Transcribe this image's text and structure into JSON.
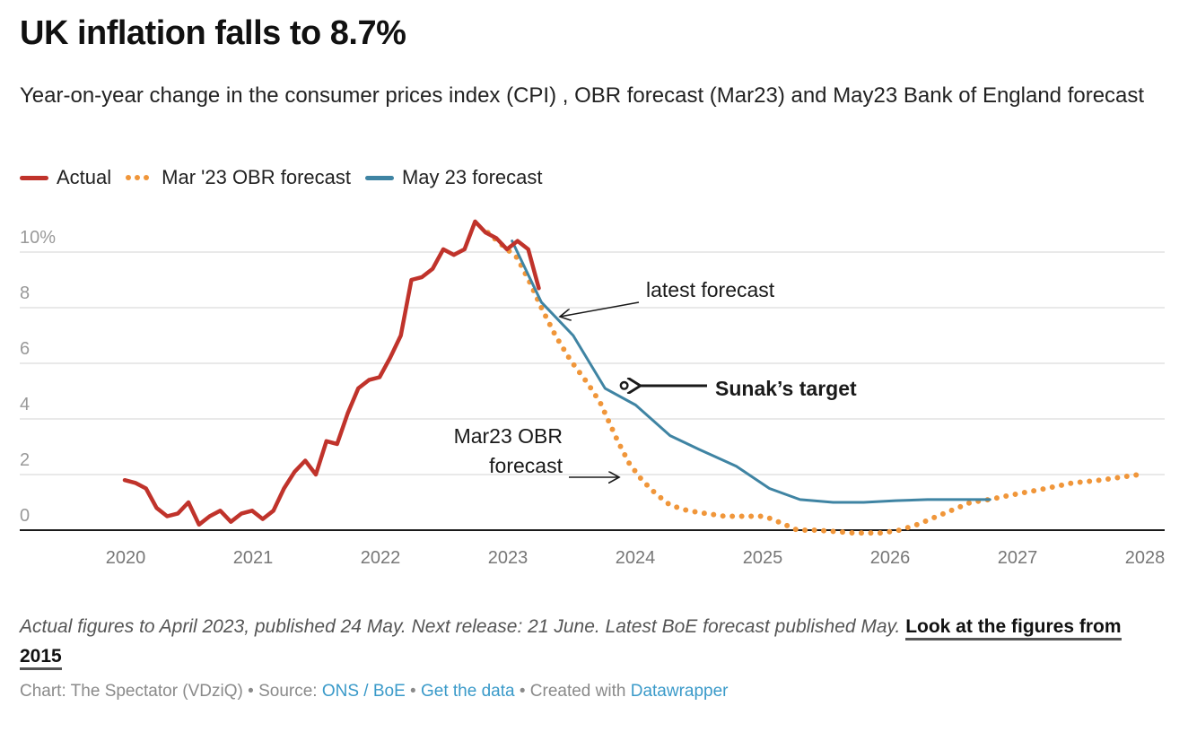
{
  "header": {
    "title": "UK inflation falls to 8.7%",
    "subtitle": "Year-on-year change in the consumer prices index (CPI) , OBR forecast (Mar23) and May23 Bank of England forecast"
  },
  "legend": [
    {
      "label": "Actual",
      "color": "#c0332b",
      "style": "solid"
    },
    {
      "label": "Mar '23 OBR forecast",
      "color": "#f0963a",
      "style": "dotted"
    },
    {
      "label": "May 23 forecast",
      "color": "#3f84a3",
      "style": "solid"
    }
  ],
  "chart_data": {
    "type": "line",
    "title": "UK inflation falls to 8.7%",
    "xlabel": "",
    "ylabel": "",
    "xlim": [
      2019.95,
      2028.1
    ],
    "ylim": [
      0,
      11.5
    ],
    "y_ticks": [
      {
        "value": 10,
        "label": "10%"
      },
      {
        "value": 8,
        "label": "8"
      },
      {
        "value": 6,
        "label": "6"
      },
      {
        "value": 4,
        "label": "4"
      },
      {
        "value": 2,
        "label": "2"
      },
      {
        "value": 0,
        "label": "0"
      }
    ],
    "x_ticks": [
      {
        "value": 2020,
        "label": "2020"
      },
      {
        "value": 2021,
        "label": "2021"
      },
      {
        "value": 2022,
        "label": "2022"
      },
      {
        "value": 2023,
        "label": "2023"
      },
      {
        "value": 2024,
        "label": "2024"
      },
      {
        "value": 2025,
        "label": "2025"
      },
      {
        "value": 2026,
        "label": "2026"
      },
      {
        "value": 2027,
        "label": "2027"
      },
      {
        "value": 2028,
        "label": "2028"
      }
    ],
    "grid": true,
    "legend_position": "top-left",
    "series": [
      {
        "name": "Mar '23 OBR forecast",
        "color": "#f0963a",
        "style": "dotted",
        "x": [
          2022.85,
          2023.0,
          2023.08,
          2023.18,
          2023.27,
          2023.38,
          2023.5,
          2023.63,
          2023.73,
          2023.8,
          2023.87,
          2023.96,
          2024.06,
          2024.17,
          2024.28,
          2024.42,
          2024.56,
          2024.71,
          2024.85,
          2025.01,
          2025.08,
          2025.15,
          2025.28,
          2025.43,
          2025.57,
          2025.72,
          2025.8,
          2025.94,
          2026.08,
          2026.22,
          2026.43,
          2026.64,
          2026.78,
          2027.0,
          2027.23,
          2027.44,
          2027.66,
          2027.96
        ],
        "values": [
          10.7,
          10.1,
          9.8,
          8.9,
          8.0,
          7.0,
          6.1,
          5.3,
          4.6,
          3.9,
          3.2,
          2.4,
          1.8,
          1.3,
          0.9,
          0.7,
          0.6,
          0.5,
          0.5,
          0.5,
          0.4,
          0.26,
          0.0,
          0.0,
          -0.05,
          -0.1,
          -0.1,
          -0.1,
          0.0,
          0.2,
          0.6,
          1.0,
          1.1,
          1.3,
          1.5,
          1.7,
          1.8,
          2.0
        ]
      },
      {
        "name": "May 23 forecast",
        "color": "#3f84a3",
        "style": "solid",
        "x": [
          2023.04,
          2023.27,
          2023.52,
          2023.77,
          2024.01,
          2024.28,
          2024.51,
          2024.8,
          2025.06,
          2025.3,
          2025.56,
          2025.8,
          2026.05,
          2026.3,
          2026.54,
          2026.79
        ],
        "values": [
          10.4,
          8.2,
          7.0,
          5.1,
          4.5,
          3.4,
          2.9,
          2.3,
          1.5,
          1.1,
          1.0,
          1.0,
          1.06,
          1.1,
          1.1,
          1.1
        ]
      },
      {
        "name": "Actual",
        "color": "#c0332b",
        "style": "solid",
        "x": [
          2020.0,
          2020.083,
          2020.167,
          2020.25,
          2020.333,
          2020.417,
          2020.5,
          2020.583,
          2020.667,
          2020.75,
          2020.833,
          2020.917,
          2021.0,
          2021.083,
          2021.167,
          2021.25,
          2021.333,
          2021.417,
          2021.5,
          2021.583,
          2021.667,
          2021.75,
          2021.833,
          2021.917,
          2022.0,
          2022.083,
          2022.167,
          2022.25,
          2022.333,
          2022.417,
          2022.5,
          2022.583,
          2022.667,
          2022.75,
          2022.833,
          2022.917,
          2023.0,
          2023.083,
          2023.167,
          2023.25
        ],
        "values": [
          1.8,
          1.7,
          1.5,
          0.8,
          0.5,
          0.6,
          1.0,
          0.2,
          0.5,
          0.7,
          0.3,
          0.6,
          0.7,
          0.4,
          0.7,
          1.5,
          2.1,
          2.5,
          2.0,
          3.2,
          3.1,
          4.2,
          5.1,
          5.4,
          5.5,
          6.2,
          7.0,
          9.0,
          9.1,
          9.4,
          10.1,
          9.9,
          10.1,
          11.1,
          10.7,
          10.5,
          10.1,
          10.4,
          10.1,
          8.7
        ]
      }
    ],
    "annotations": [
      {
        "text": "latest forecast",
        "bold": false
      },
      {
        "text": "Sunak’s target",
        "bold": true,
        "marker": {
          "x": 2023.92,
          "value": 5.2
        }
      },
      {
        "text_lines": [
          "Mar23 OBR",
          "forecast"
        ],
        "bold": false
      }
    ]
  },
  "notes": {
    "text": "Actual figures to April 2023, published 24 May. Next release: 21 June. Latest BoE forecast published May.",
    "link_label": "Look at the figures from 2015"
  },
  "footer": {
    "chart_credit": "Chart: The Spectator (VDziQ)",
    "separator": "•",
    "source_prefix": "Source:",
    "source_link": "ONS / BoE",
    "get_data_link": "Get the data",
    "created_prefix": "Created with",
    "created_link": "Datawrapper"
  }
}
